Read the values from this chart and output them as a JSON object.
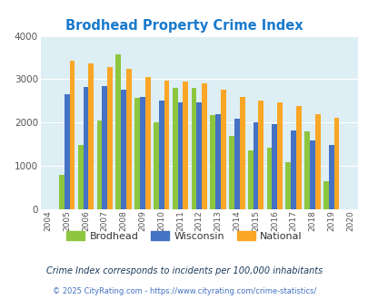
{
  "title": "Brodhead Property Crime Index",
  "years": [
    2004,
    2005,
    2006,
    2007,
    2008,
    2009,
    2010,
    2011,
    2012,
    2013,
    2014,
    2015,
    2016,
    2017,
    2018,
    2019,
    2020
  ],
  "brodhead": [
    null,
    800,
    1480,
    2040,
    3570,
    2580,
    2000,
    2790,
    2810,
    2170,
    1700,
    1360,
    1420,
    1090,
    1790,
    650,
    null
  ],
  "wisconsin": [
    null,
    2660,
    2830,
    2840,
    2750,
    2590,
    2500,
    2470,
    2460,
    2190,
    2090,
    2000,
    1960,
    1820,
    1580,
    1480,
    null
  ],
  "national": [
    null,
    3430,
    3360,
    3290,
    3230,
    3060,
    2960,
    2940,
    2900,
    2750,
    2600,
    2500,
    2460,
    2380,
    2200,
    2110,
    null
  ],
  "bar_colors": {
    "brodhead": "#8dc63f",
    "wisconsin": "#4472c4",
    "national": "#faa627"
  },
  "bg_color": "#ddeef5",
  "ylim": [
    0,
    4000
  ],
  "yticks": [
    0,
    1000,
    2000,
    3000,
    4000
  ],
  "title_color": "#1a7acc",
  "legend_labels": [
    "Brodhead",
    "Wisconsin",
    "National"
  ],
  "footnote1": "Crime Index corresponds to incidents per 100,000 inhabitants",
  "footnote2": "© 2025 CityRating.com - https://www.cityrating.com/crime-statistics/",
  "footnote1_color": "#1a3a5c",
  "footnote2_color": "#4472c4"
}
